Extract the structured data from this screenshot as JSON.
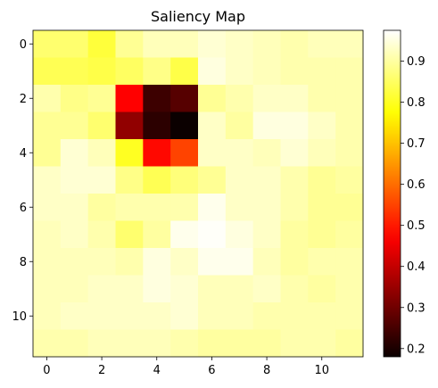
{
  "chart_data": {
    "type": "heatmap",
    "title": "Saliency Map",
    "xlabel": "",
    "ylabel": "",
    "colormap": "hot",
    "rows": 12,
    "cols": 12,
    "xticks": [
      0,
      2,
      4,
      6,
      8,
      10
    ],
    "yticks": [
      0,
      2,
      4,
      6,
      8,
      10
    ],
    "xtick_labels": [
      "0",
      "2",
      "4",
      "6",
      "8",
      "10"
    ],
    "ytick_labels": [
      "0",
      "2",
      "4",
      "6",
      "8",
      "10"
    ],
    "colorbar": {
      "vmin": 0.18,
      "vmax": 0.975,
      "ticks": [
        0.2,
        0.3,
        0.4,
        0.5,
        0.6,
        0.7,
        0.8,
        0.9
      ],
      "tick_labels": [
        "0.2",
        "0.3",
        "0.4",
        "0.5",
        "0.6",
        "0.7",
        "0.8",
        "0.9"
      ]
    },
    "values": [
      [
        0.86,
        0.86,
        0.82,
        0.89,
        0.92,
        0.92,
        0.94,
        0.93,
        0.92,
        0.91,
        0.92,
        0.92
      ],
      [
        0.84,
        0.84,
        0.83,
        0.85,
        0.88,
        0.83,
        0.95,
        0.93,
        0.92,
        0.91,
        0.91,
        0.91
      ],
      [
        0.91,
        0.88,
        0.89,
        0.47,
        0.24,
        0.27,
        0.89,
        0.91,
        0.93,
        0.93,
        0.91,
        0.91
      ],
      [
        0.89,
        0.89,
        0.86,
        0.34,
        0.22,
        0.18,
        0.93,
        0.9,
        0.95,
        0.95,
        0.93,
        0.91
      ],
      [
        0.89,
        0.94,
        0.92,
        0.8,
        0.48,
        0.55,
        0.93,
        0.93,
        0.92,
        0.94,
        0.92,
        0.91
      ],
      [
        0.93,
        0.94,
        0.94,
        0.88,
        0.84,
        0.87,
        0.89,
        0.93,
        0.93,
        0.91,
        0.89,
        0.9
      ],
      [
        0.93,
        0.93,
        0.9,
        0.91,
        0.91,
        0.91,
        0.96,
        0.93,
        0.93,
        0.91,
        0.89,
        0.89
      ],
      [
        0.92,
        0.93,
        0.91,
        0.86,
        0.9,
        0.96,
        0.97,
        0.95,
        0.93,
        0.9,
        0.89,
        0.9
      ],
      [
        0.92,
        0.92,
        0.92,
        0.91,
        0.95,
        0.93,
        0.96,
        0.96,
        0.92,
        0.9,
        0.91,
        0.91
      ],
      [
        0.92,
        0.92,
        0.93,
        0.93,
        0.95,
        0.94,
        0.92,
        0.92,
        0.93,
        0.91,
        0.9,
        0.91
      ],
      [
        0.92,
        0.93,
        0.93,
        0.93,
        0.93,
        0.94,
        0.92,
        0.92,
        0.91,
        0.91,
        0.91,
        0.91
      ],
      [
        0.91,
        0.91,
        0.92,
        0.92,
        0.92,
        0.91,
        0.9,
        0.9,
        0.9,
        0.91,
        0.91,
        0.9
      ]
    ]
  }
}
